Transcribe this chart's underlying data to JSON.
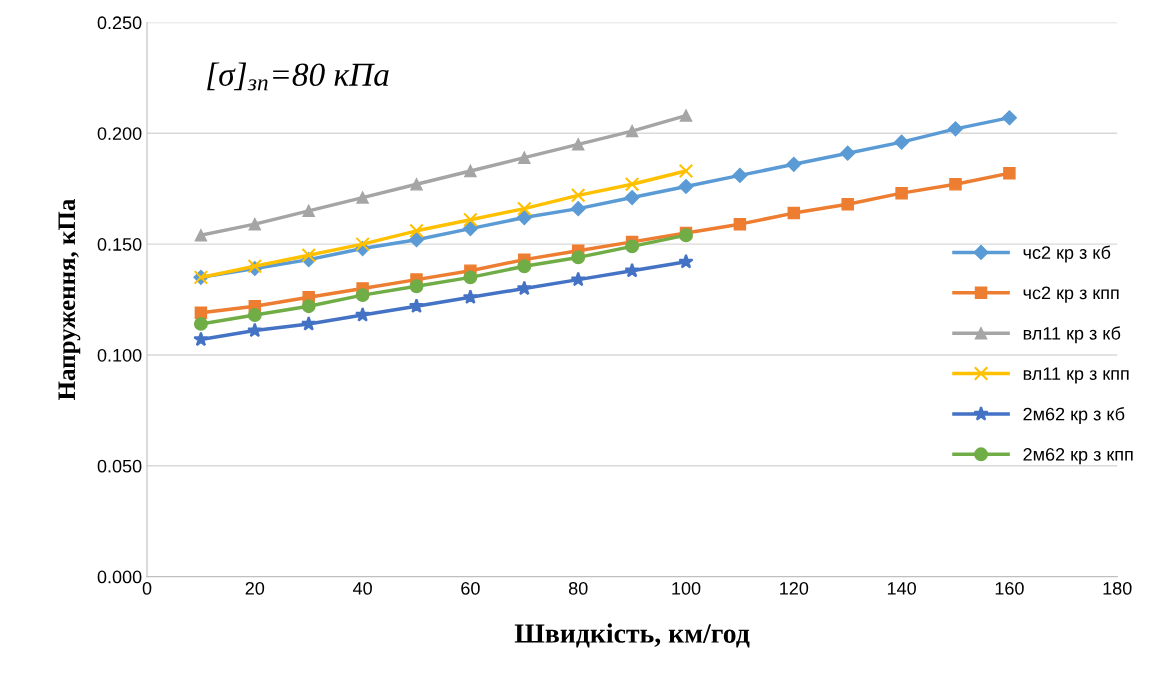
{
  "chart_data": {
    "type": "line",
    "xlabel": "Швидкість, км/год",
    "ylabel": "Напруження, кПа",
    "annotations": [
      "[σ]$_{зп}$=80 кПа"
    ],
    "xlim": [
      0,
      180
    ],
    "xticks": [
      0,
      20,
      40,
      60,
      80,
      100,
      120,
      140,
      160,
      180
    ],
    "ylim": [
      0,
      0.25
    ],
    "yticks": [
      {
        "value": 0,
        "label": "0.000"
      },
      {
        "value": 0.05,
        "label": "0.050"
      },
      {
        "value": 0.1,
        "label": "0.100"
      },
      {
        "value": 0.15,
        "label": "0.150"
      },
      {
        "value": 0.2,
        "label": "0.200"
      },
      {
        "value": 0.25,
        "label": "0.250"
      }
    ],
    "grid": "y",
    "legend": "right",
    "series": [
      {
        "name": "чс2 кр з кб",
        "color": "#5b9bd5",
        "marker": "diamond",
        "x": [
          10,
          20,
          30,
          40,
          50,
          60,
          70,
          80,
          90,
          100,
          110,
          120,
          130,
          140,
          150,
          160
        ],
        "values": [
          0.135,
          0.139,
          0.143,
          0.148,
          0.152,
          0.157,
          0.162,
          0.166,
          0.171,
          0.176,
          0.181,
          0.186,
          0.191,
          0.196,
          0.202,
          0.207
        ]
      },
      {
        "name": "чс2 кр з кпп",
        "color": "#ed7d31",
        "marker": "square",
        "x": [
          10,
          20,
          30,
          40,
          50,
          60,
          70,
          80,
          90,
          100,
          110,
          120,
          130,
          140,
          150,
          160
        ],
        "values": [
          0.119,
          0.122,
          0.126,
          0.13,
          0.134,
          0.138,
          0.143,
          0.147,
          0.151,
          0.155,
          0.159,
          0.164,
          0.168,
          0.173,
          0.177,
          0.182
        ]
      },
      {
        "name": "вл11 кр з кб",
        "color": "#a5a5a5",
        "marker": "triangle",
        "x": [
          10,
          20,
          30,
          40,
          50,
          60,
          70,
          80,
          90,
          100
        ],
        "values": [
          0.154,
          0.159,
          0.165,
          0.171,
          0.177,
          0.183,
          0.189,
          0.195,
          0.201,
          0.208
        ]
      },
      {
        "name": "вл11 кр з кпп",
        "color": "#ffc000",
        "marker": "cross",
        "x": [
          10,
          20,
          30,
          40,
          50,
          60,
          70,
          80,
          90,
          100
        ],
        "values": [
          0.135,
          0.14,
          0.145,
          0.15,
          0.156,
          0.161,
          0.166,
          0.172,
          0.177,
          0.183
        ]
      },
      {
        "name": "2м62 кр з кб",
        "color": "#4472c4",
        "marker": "star",
        "x": [
          10,
          20,
          30,
          40,
          50,
          60,
          70,
          80,
          90,
          100
        ],
        "values": [
          0.107,
          0.111,
          0.114,
          0.118,
          0.122,
          0.126,
          0.13,
          0.134,
          0.138,
          0.142
        ]
      },
      {
        "name": "2м62 кр з кпп",
        "color": "#70ad47",
        "marker": "circle",
        "x": [
          10,
          20,
          30,
          40,
          50,
          60,
          70,
          80,
          90,
          100
        ],
        "values": [
          0.114,
          0.118,
          0.122,
          0.127,
          0.131,
          0.135,
          0.14,
          0.144,
          0.149,
          0.154
        ]
      }
    ]
  }
}
